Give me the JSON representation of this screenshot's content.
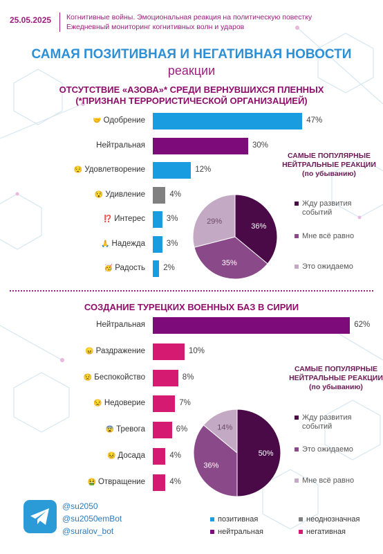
{
  "header": {
    "date": "25.05.2025",
    "line1": "Когнитивные войны. Эмоциональная реакция на политическую повестку",
    "line2": "Ежедневный мониторинг когнитивных волн и ударов"
  },
  "title": "САМАЯ ПОЗИТИВНАЯ И НЕГАТИВНАЯ НОВОСТИ",
  "subtitle": "реакции",
  "colors": {
    "positive": "#1a9de0",
    "neutral": "#7d0b7a",
    "ambiguous": "#808080",
    "negative": "#d41a71",
    "pie_dark": "#4a0a48",
    "pie_mid": "#8a4a89",
    "pie_light": "#c4a9c4"
  },
  "chart_data": [
    {
      "type": "bar",
      "title_line1": "ОТСУТСТВИЕ «АЗОВА»* СРЕДИ ВЕРНУВШИХСЯ ПЛЕННЫХ",
      "title_line2": "(*ПРИЗНАН ТЕРРОРИСТИЧЕСКОЙ ОРГАНИЗАЦИЕЙ)",
      "categories": [
        "Одобрение",
        "Нейтральная",
        "Удовлетворение",
        "Удивление",
        "Интерес",
        "Надежда",
        "Радость"
      ],
      "emoji": [
        "🤝",
        "",
        "😌",
        "😯",
        "⁉️",
        "🙏",
        "🥳"
      ],
      "values": [
        47,
        30,
        12,
        4,
        3,
        3,
        2
      ],
      "value_labels": [
        "47%",
        "30%",
        "12%",
        "4%",
        "3%",
        "3%",
        "2%"
      ],
      "kinds": [
        "positive",
        "neutral",
        "positive",
        "ambiguous",
        "positive",
        "positive",
        "positive"
      ]
    },
    {
      "type": "pie",
      "title": [
        "САМЫЕ ПОПУЛЯРНЫЕ",
        "НЕЙТРАЛЬНЫЕ РЕАКЦИИ",
        "(по убыванию)"
      ],
      "labels": [
        "Жду развития событий",
        "Мне всё равно",
        "Это ожидаемо"
      ],
      "legend_lines": [
        [
          "Жду развития",
          "событий"
        ],
        [
          "Мне всё равно"
        ],
        [
          "Это ожидаемо"
        ]
      ],
      "values": [
        36,
        35,
        29
      ],
      "value_labels": [
        "36%",
        "35%",
        "29%"
      ]
    },
    {
      "type": "bar",
      "title_line1": "СОЗДАНИЕ ТУРЕЦКИХ ВОЕННЫХ БАЗ В СИРИИ",
      "title_line2": "",
      "categories": [
        "Нейтральная",
        "Раздражение",
        "Беспокойство",
        "Недоверие",
        "Тревога",
        "Досада",
        "Отвращение"
      ],
      "emoji": [
        "",
        "😠",
        "😟",
        "😒",
        "😨",
        "😣",
        "🤮"
      ],
      "values": [
        62,
        10,
        8,
        7,
        6,
        4,
        4
      ],
      "value_labels": [
        "62%",
        "10%",
        "8%",
        "7%",
        "6%",
        "4%",
        "4%"
      ],
      "kinds": [
        "neutral",
        "negative",
        "negative",
        "negative",
        "negative",
        "negative",
        "negative"
      ]
    },
    {
      "type": "pie",
      "title": [
        "САМЫЕ ПОПУЛЯРНЫЕ",
        "НЕЙТРАЛЬНЫЕ РЕАКЦИИ",
        "(по убыванию)"
      ],
      "labels": [
        "Жду развития событий",
        "Это ожидаемо",
        "Мне всё равно"
      ],
      "legend_lines": [
        [
          "Жду развития",
          "событий"
        ],
        [
          "Это ожидаемо"
        ],
        [
          "Мне всё равно"
        ]
      ],
      "values": [
        50,
        36,
        14
      ],
      "value_labels": [
        "50%",
        "36%",
        "14%"
      ]
    }
  ],
  "contacts": [
    "@su2050",
    "@su2050emBot",
    "@suralov_bot"
  ],
  "legend": [
    {
      "label": "позитивная",
      "kind": "positive"
    },
    {
      "label": "неоднозначная",
      "kind": "ambiguous"
    },
    {
      "label": "нейтральная",
      "kind": "neutral"
    },
    {
      "label": "негативная",
      "kind": "negative"
    }
  ]
}
